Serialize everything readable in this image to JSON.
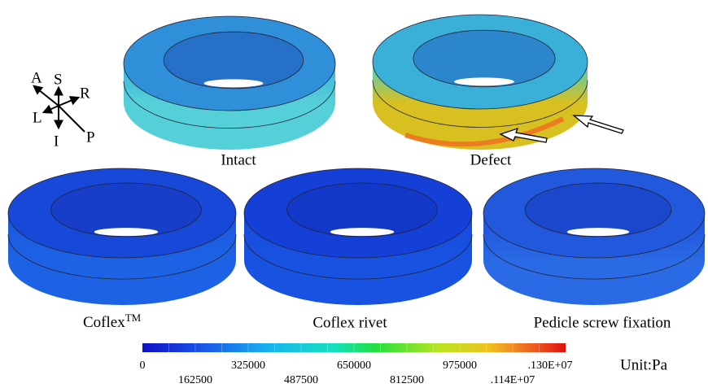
{
  "orientation": {
    "labels": [
      "A",
      "S",
      "R",
      "L",
      "I",
      "P"
    ]
  },
  "panels": [
    {
      "label": "Intact"
    },
    {
      "label": "Defect"
    },
    {
      "label": "Coflex",
      "superscript": "TM"
    },
    {
      "label": "Coflex rivet"
    },
    {
      "label": "Pedicle screw fixation"
    }
  ],
  "colorbar": {
    "upper_ticks": [
      "0",
      "325000",
      "650000",
      "975000",
      ".130E+07"
    ],
    "lower_ticks": [
      "162500",
      "487500",
      "812500",
      ".114E+07"
    ],
    "unit": "Unit:Pa"
  }
}
